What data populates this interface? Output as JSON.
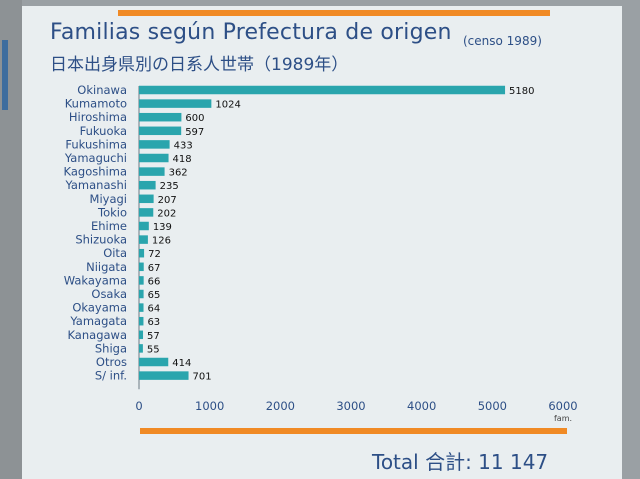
{
  "texts": {
    "title": "Familias según Prefectura de origen",
    "note": "(censo 1989)",
    "subtitle": "日本出身県別の日系人世帯（1989年）",
    "total": "Total  合計: 11 147"
  },
  "colors": {
    "bar": "#2aa5ad",
    "label": "#2d4f86",
    "accent": "#f08a25"
  },
  "chart_data": {
    "type": "bar",
    "orientation": "horizontal",
    "categories": [
      "Okinawa",
      "Kumamoto",
      "Hiroshima",
      "Fukuoka",
      "Fukushima",
      "Yamaguchi",
      "Kagoshima",
      "Yamanashi",
      "Miyagi",
      "Tokio",
      "Ehime",
      "Shizuoka",
      "Oita",
      "Niigata",
      "Wakayama",
      "Osaka",
      "Okayama",
      "Yamagata",
      "Kanagawa",
      "Shiga",
      "Otros",
      "S/ inf."
    ],
    "values": [
      5180,
      1024,
      600,
      597,
      433,
      418,
      362,
      235,
      207,
      202,
      139,
      126,
      72,
      67,
      66,
      65,
      64,
      63,
      57,
      55,
      414,
      701
    ],
    "title": "Familias según Prefectura de origen",
    "xlabel": "fam.",
    "ylabel": "",
    "xlim": [
      0,
      6000
    ],
    "xticks": [
      0,
      1000,
      2000,
      3000,
      4000,
      5000,
      6000
    ],
    "grid": false
  }
}
